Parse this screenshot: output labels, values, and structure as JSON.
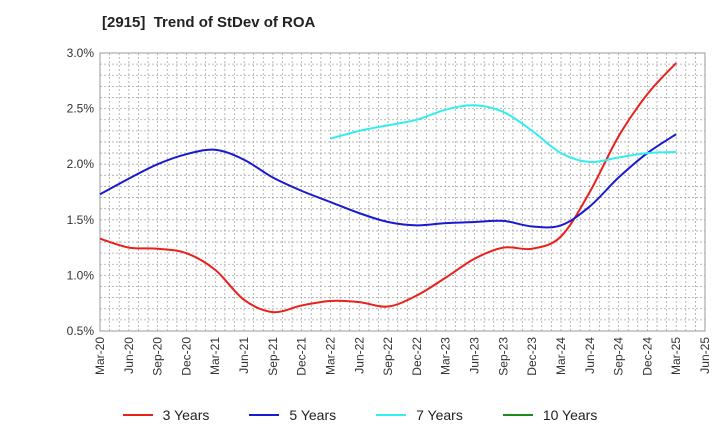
{
  "chart_data": {
    "type": "line",
    "title": "[2915]  Trend of StDev of ROA",
    "x": [
      "Mar-20",
      "Jun-20",
      "Sep-20",
      "Dec-20",
      "Mar-21",
      "Jun-21",
      "Sep-21",
      "Dec-21",
      "Mar-22",
      "Jun-22",
      "Sep-22",
      "Dec-22",
      "Mar-23",
      "Jun-23",
      "Sep-23",
      "Dec-23",
      "Mar-24",
      "Jun-24",
      "Sep-24",
      "Dec-24",
      "Mar-25",
      "Jun-25"
    ],
    "y_ticks": [
      "0.5%",
      "1.0%",
      "1.5%",
      "2.0%",
      "2.5%",
      "3.0%"
    ],
    "ylim": [
      0.5,
      3.0
    ],
    "grid": true,
    "legend_position": "bottom",
    "series": [
      {
        "name": "3 Years",
        "color": "#e8211d",
        "values": [
          1.33,
          1.25,
          1.24,
          1.2,
          1.05,
          0.78,
          0.67,
          0.73,
          0.77,
          0.76,
          0.72,
          0.82,
          0.98,
          1.15,
          1.25,
          1.24,
          1.35,
          1.75,
          2.25,
          2.63,
          2.91,
          null
        ]
      },
      {
        "name": "5 Years",
        "color": "#1a1ad0",
        "values": [
          1.73,
          1.87,
          2.0,
          2.09,
          2.13,
          2.04,
          1.88,
          1.76,
          1.66,
          1.56,
          1.48,
          1.45,
          1.47,
          1.48,
          1.49,
          1.44,
          1.45,
          1.62,
          1.88,
          2.1,
          2.27,
          null
        ]
      },
      {
        "name": "7 Years",
        "color": "#33eeee",
        "values": [
          null,
          null,
          null,
          null,
          null,
          null,
          null,
          null,
          2.23,
          2.3,
          2.35,
          2.4,
          2.49,
          2.53,
          2.47,
          2.3,
          2.1,
          2.02,
          2.06,
          2.1,
          2.11,
          null
        ]
      },
      {
        "name": "10 Years",
        "color": "#1c8a1c",
        "values": [
          null,
          null,
          null,
          null,
          null,
          null,
          null,
          null,
          null,
          null,
          null,
          null,
          null,
          null,
          null,
          null,
          null,
          null,
          null,
          null,
          null,
          null
        ]
      }
    ]
  }
}
